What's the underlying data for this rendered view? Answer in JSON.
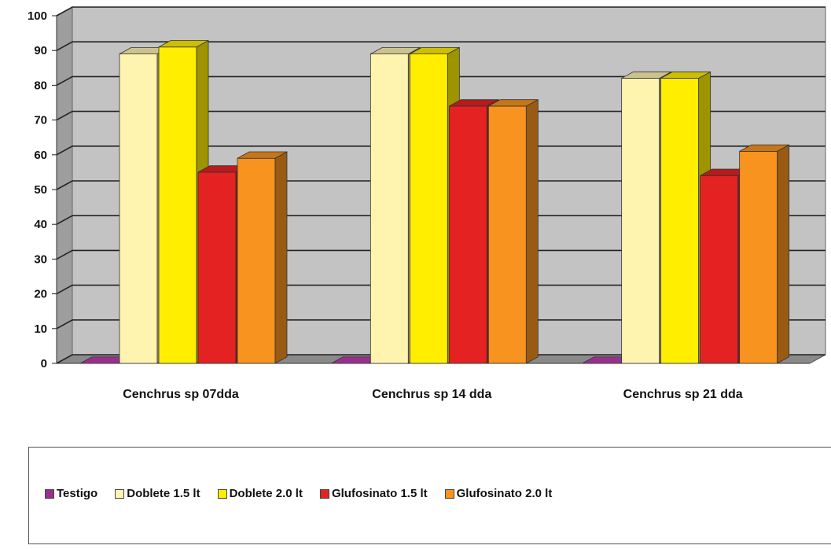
{
  "chart_data": {
    "type": "bar",
    "categories": [
      "Cenchrus sp 07dda",
      "Cenchrus sp 14 dda",
      "Cenchrus sp 21 dda"
    ],
    "series": [
      {
        "name": "Testigo",
        "values": [
          0,
          0,
          0
        ],
        "color": "#9b2f8f"
      },
      {
        "name": "Doblete 1.5 lt",
        "values": [
          89,
          89,
          82
        ],
        "color": "#fff3b0"
      },
      {
        "name": "Doblete 2.0 lt",
        "values": [
          91,
          89,
          82
        ],
        "color": "#ffee00"
      },
      {
        "name": "Glufosinato 1.5 lt",
        "values": [
          55,
          74,
          54
        ],
        "color": "#e52222"
      },
      {
        "name": "Glufosinato 2.0 lt",
        "values": [
          59,
          74,
          61
        ],
        "color": "#f7931e"
      }
    ],
    "yticks": [
      "0",
      "10",
      "20",
      "30",
      "40",
      "50",
      "60",
      "70",
      "80",
      "90",
      "100"
    ],
    "ylim": [
      0,
      100
    ],
    "grid": true,
    "legend_position": "bottom",
    "style": "3d-bar"
  }
}
